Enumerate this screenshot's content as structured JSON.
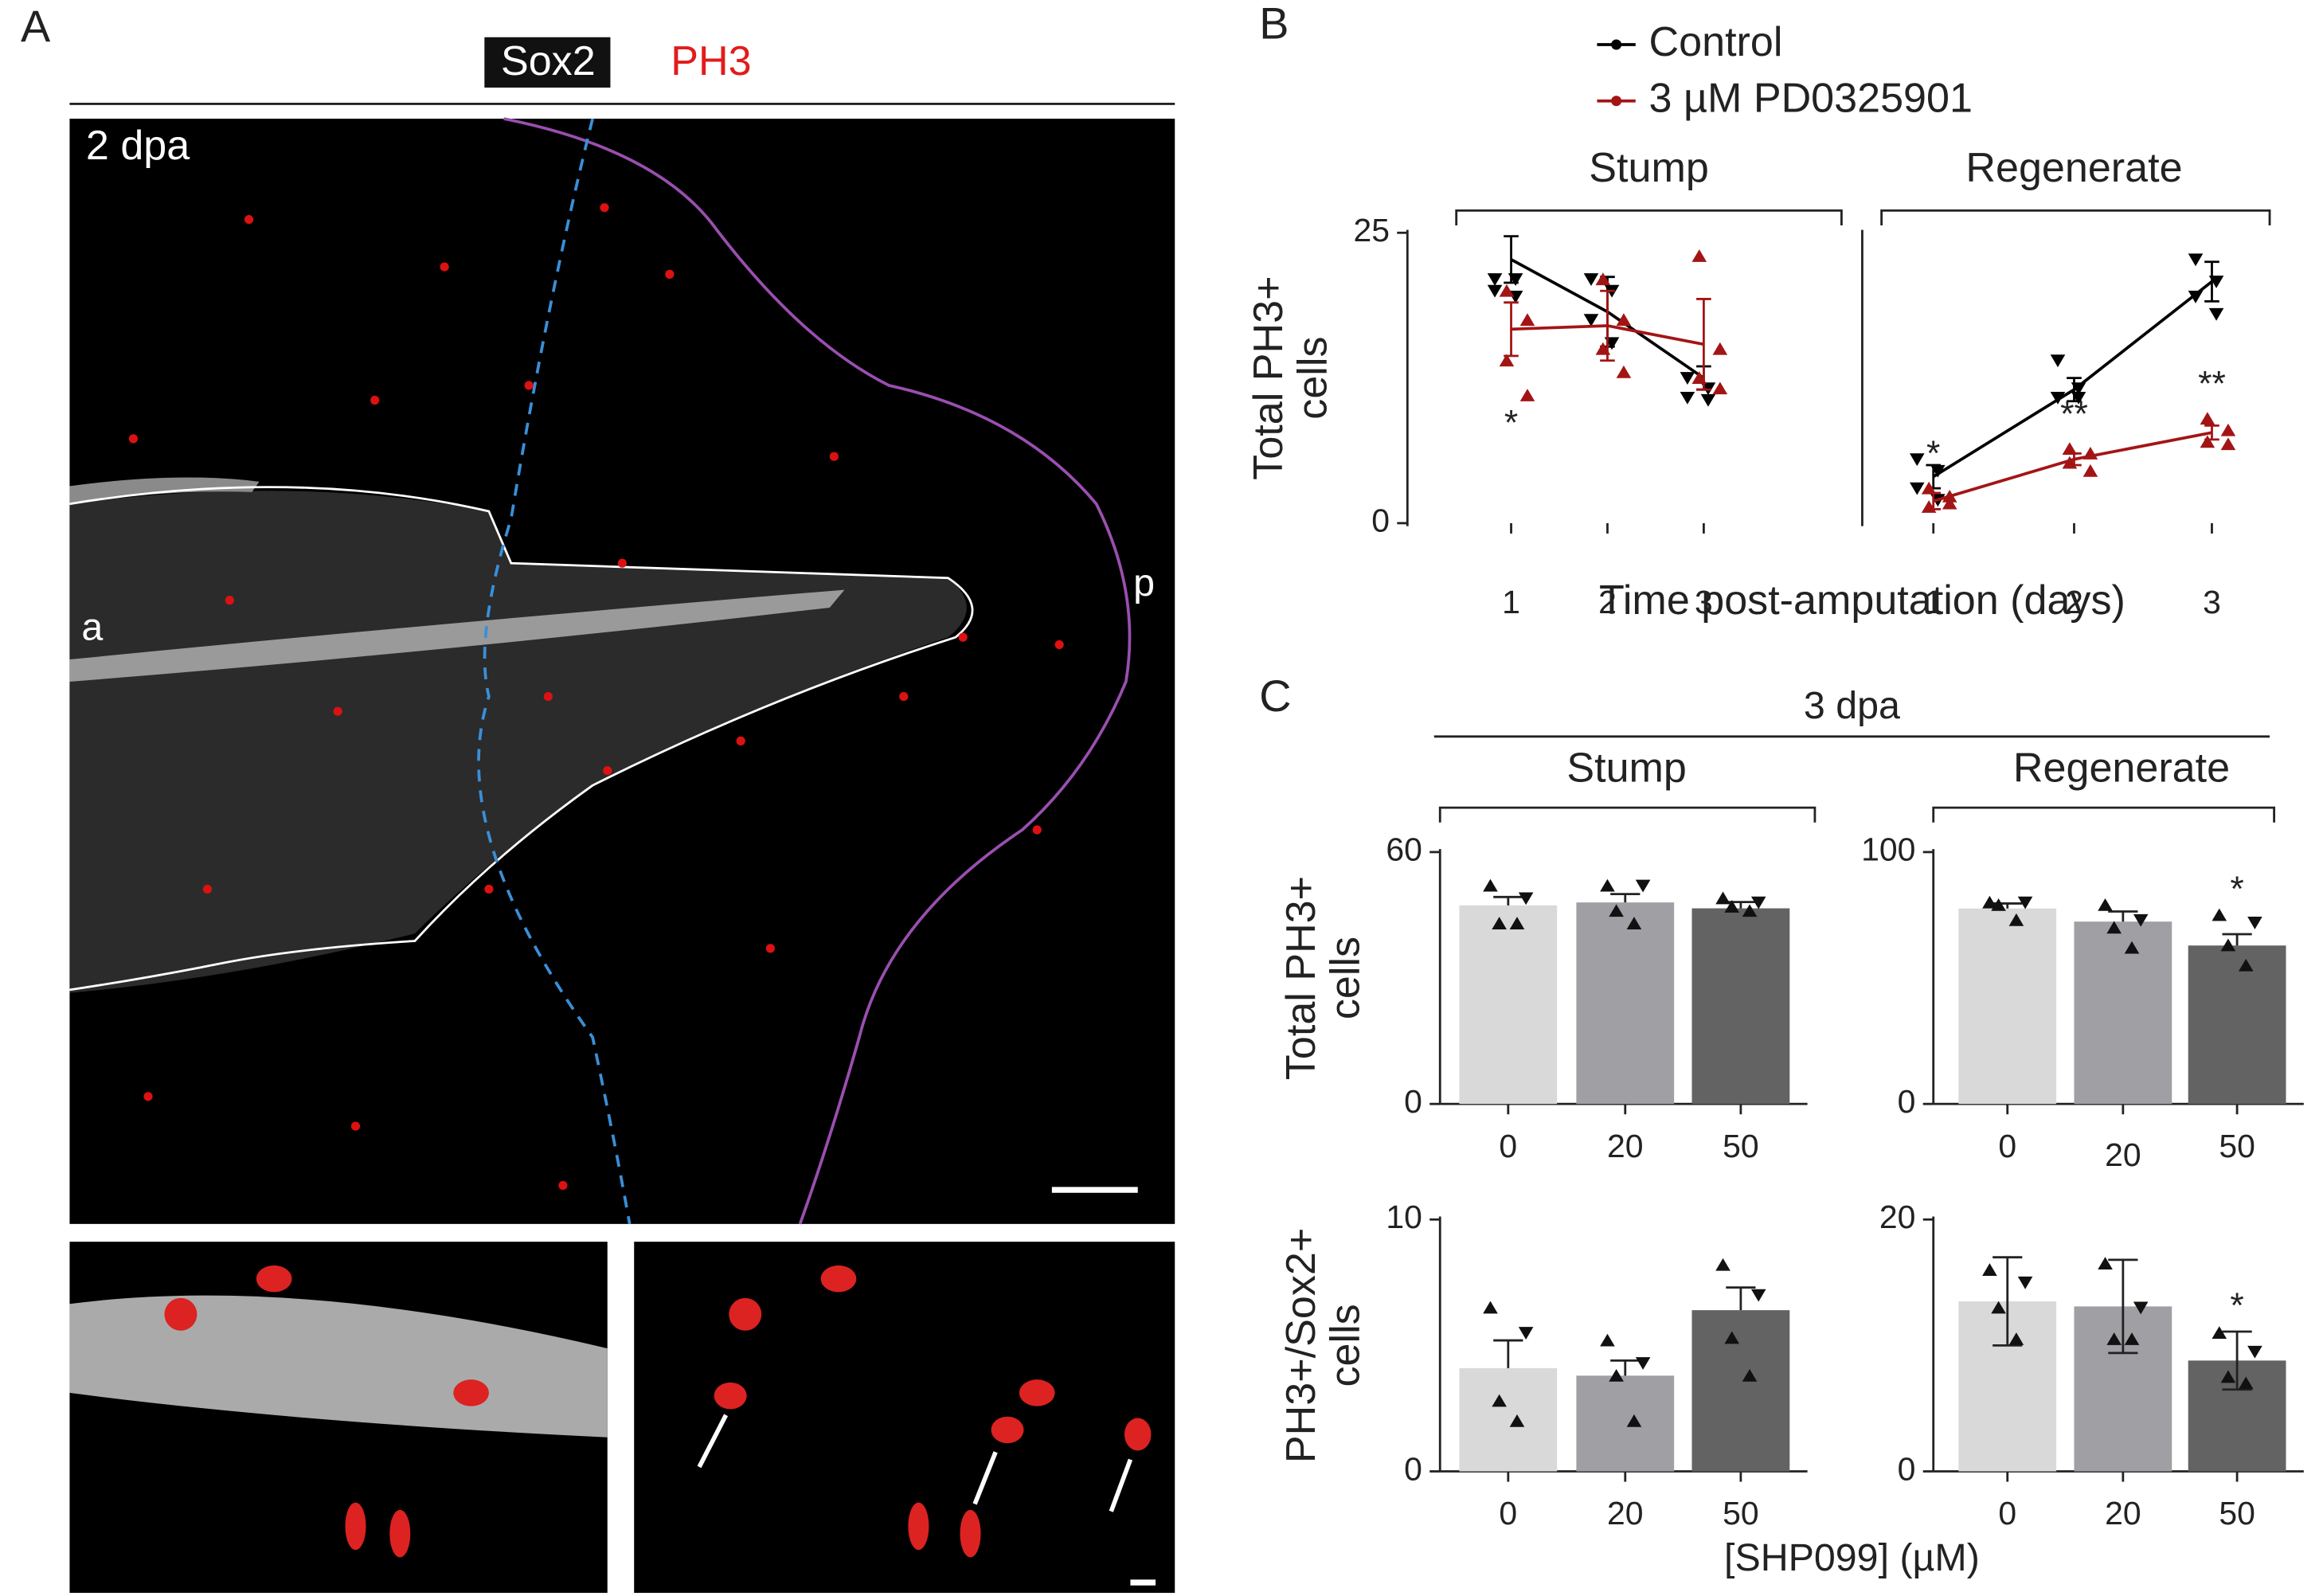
{
  "figure": {
    "panel_labels": [
      "A",
      "B",
      "C"
    ],
    "channels": [
      "Sox2",
      "PH3"
    ],
    "timepoint": "2 dpa",
    "axis_labels": [
      "a",
      "p"
    ],
    "header": "3 dpa",
    "xlabel": "[SHP099] (µM)"
  },
  "chart_data": [
    {
      "type": "line",
      "title": "Stump",
      "categories": [
        "1",
        "2",
        "3"
      ],
      "ylim": [
        0,
        25
      ],
      "yticks": [
        0,
        25
      ],
      "ylabel": [
        "Total PH3+",
        "cells"
      ],
      "xlabel": "Time post-amputation (days)",
      "legend": "top",
      "significance_side": "below",
      "series": [
        {
          "name": "Control",
          "color": "#000000",
          "marker": "triangle-down",
          "values": [
            22.7,
            18.2,
            12.5
          ],
          "errors": [
            2,
            3,
            1
          ],
          "points": [
            [
              21,
              21,
              20,
              19.5
            ],
            [
              21,
              20,
              17.5,
              15.5
            ],
            [
              12.5,
              11.6,
              10.8,
              10.6
            ]
          ],
          "significance": [
            null,
            null,
            null
          ]
        },
        {
          "name": "3 µM PD0325901",
          "color": "#a31515",
          "marker": "triangle-up",
          "values": [
            16.7,
            17,
            15.4
          ],
          "errors": [
            2.3,
            3,
            3.9
          ],
          "points": [
            [
              20,
              17.5,
              14,
              11
            ],
            [
              21,
              17.5,
              15,
              13
            ],
            [
              23,
              15,
              12.5,
              11.6
            ]
          ],
          "significance": [
            "*",
            null,
            null
          ]
        }
      ]
    },
    {
      "type": "line",
      "title": "Regenerate",
      "categories": [
        "1",
        "2",
        "3"
      ],
      "ylim": [
        0,
        25
      ],
      "significance_side": "above",
      "series": [
        {
          "color": "#000000",
          "marker": "triangle-down",
          "values": [
            4,
            11.5,
            20.8
          ],
          "errors": [
            1,
            1,
            1.7
          ],
          "points": [
            [
              5.5,
              4.5,
              3,
              2
            ],
            [
              14,
              11.6,
              10.8,
              10.8
            ],
            [
              22.7,
              20.8,
              19.5,
              18
            ]
          ]
        },
        {
          "color": "#a31515",
          "marker": "triangle-up",
          "values": [
            1.9,
            5.5,
            7.8
          ],
          "errors": [
            0.7,
            0.5,
            0.6
          ],
          "points": [
            [
              3,
              2.3,
              1.4,
              1.7
            ],
            [
              6.4,
              6,
              5.2,
              4.5
            ],
            [
              9,
              8,
              7,
              6.8
            ]
          ],
          "significance": [
            "*",
            "**",
            "**"
          ]
        }
      ]
    },
    {
      "type": "bar",
      "title": "Stump",
      "categories": [
        "0",
        "20",
        "50"
      ],
      "values": [
        47.3,
        48,
        46.6
      ],
      "errors": [
        2,
        2,
        1.5
      ],
      "colors": [
        "#d9d9d9",
        "#a0a0a4",
        "#636363"
      ],
      "points": [
        [
          52,
          49,
          43,
          43
        ],
        [
          52,
          52,
          46,
          43
        ],
        [
          49,
          48,
          47,
          46
        ]
      ],
      "ylim": [
        0,
        60
      ],
      "yticks": [
        0,
        60
      ],
      "ylabel": [
        "Total PH3+",
        "cells"
      ],
      "error_bars": "up"
    },
    {
      "type": "bar",
      "title": "Regenerate",
      "categories": [
        "0",
        "20",
        "50"
      ],
      "values": [
        77.6,
        72.4,
        62.9
      ],
      "errors": [
        2,
        4,
        4.5
      ],
      "colors": [
        "#d9d9d9",
        "#a0a0a4",
        "#636363"
      ],
      "points": [
        [
          80,
          80,
          79,
          73
        ],
        [
          79,
          73,
          70,
          62
        ],
        [
          75,
          72,
          63,
          55
        ]
      ],
      "ylim": [
        0,
        100
      ],
      "yticks": [
        0,
        100
      ],
      "error_bars": "up",
      "significance": [
        null,
        null,
        "*"
      ]
    },
    {
      "type": "bar",
      "categories": [
        "0",
        "20",
        "50"
      ],
      "values": [
        4.1,
        3.8,
        6.4
      ],
      "errors": [
        1.1,
        0.6,
        0.9
      ],
      "colors": [
        "#d9d9d9",
        "#a0a0a4",
        "#636363"
      ],
      "points": [
        [
          6.5,
          5.5,
          2.8,
          2
        ],
        [
          5.2,
          4.3,
          3.8,
          2
        ],
        [
          8.2,
          7,
          5.3,
          3.8
        ]
      ],
      "ylim": [
        0,
        10
      ],
      "yticks": [
        0,
        10
      ],
      "ylabel": [
        "PH3+/Sox2+",
        "cells"
      ],
      "error_bars": "up"
    },
    {
      "type": "bar",
      "categories": [
        "0",
        "20",
        "50"
      ],
      "values": [
        13.5,
        13.1,
        8.8
      ],
      "errors": [
        3.5,
        3.7,
        2.3
      ],
      "colors": [
        "#d9d9d9",
        "#a0a0a4",
        "#636363"
      ],
      "points": [
        [
          16,
          15,
          13,
          10.5
        ],
        [
          16.5,
          13,
          10.5,
          10.5
        ],
        [
          11,
          9.5,
          7.5,
          7
        ]
      ],
      "ylim": [
        0,
        20
      ],
      "yticks": [
        0,
        20
      ],
      "error_bars": "both",
      "significance": [
        null,
        null,
        "*"
      ]
    }
  ]
}
